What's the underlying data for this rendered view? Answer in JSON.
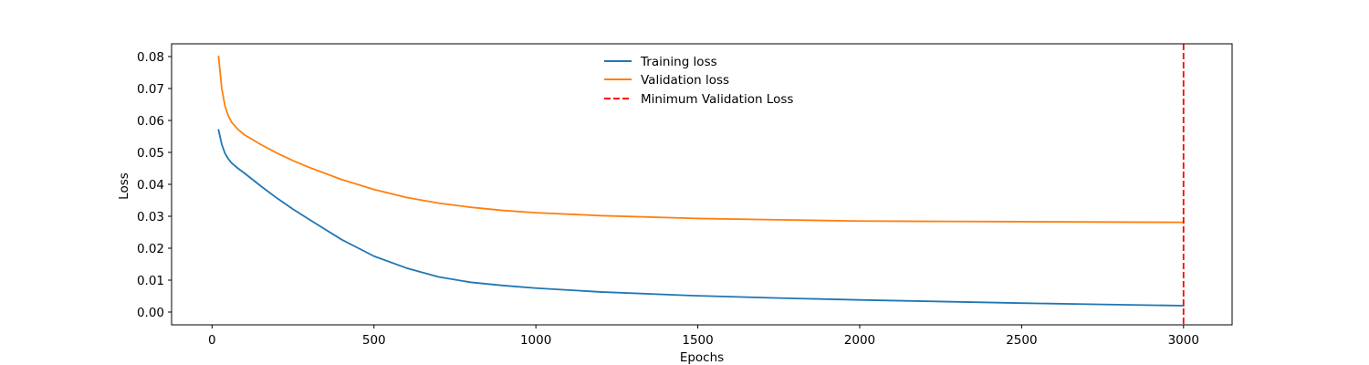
{
  "chart_data": {
    "type": "line",
    "title": "",
    "xlabel": "Epochs",
    "ylabel": "Loss",
    "xlim": [
      -125,
      3150
    ],
    "ylim": [
      -0.004,
      0.084
    ],
    "xticks": [
      0,
      500,
      1000,
      1500,
      2000,
      2500,
      3000
    ],
    "xtick_labels": [
      "0",
      "500",
      "1000",
      "1500",
      "2000",
      "2500",
      "3000"
    ],
    "yticks": [
      0.0,
      0.01,
      0.02,
      0.03,
      0.04,
      0.05,
      0.06,
      0.07,
      0.08
    ],
    "ytick_labels": [
      "0.00",
      "0.01",
      "0.02",
      "0.03",
      "0.04",
      "0.05",
      "0.06",
      "0.07",
      "0.08"
    ],
    "grid": false,
    "legend_position": "top-center",
    "series": [
      {
        "name": "Training loss",
        "color": "#1f77b4",
        "style": "solid",
        "x": [
          20,
          30,
          40,
          50,
          60,
          80,
          100,
          150,
          200,
          250,
          300,
          400,
          500,
          600,
          700,
          800,
          900,
          1000,
          1200,
          1500,
          1750,
          2000,
          2250,
          2500,
          2750,
          3000
        ],
        "y": [
          0.057,
          0.0525,
          0.0497,
          0.048,
          0.0467,
          0.045,
          0.0435,
          0.0395,
          0.0357,
          0.0322,
          0.029,
          0.0227,
          0.0175,
          0.0138,
          0.011,
          0.0093,
          0.0083,
          0.0075,
          0.0063,
          0.0051,
          0.0044,
          0.0038,
          0.0033,
          0.0028,
          0.0024,
          0.002
        ]
      },
      {
        "name": "Validation loss",
        "color": "#ff7f0e",
        "style": "solid",
        "x": [
          20,
          30,
          40,
          50,
          60,
          80,
          100,
          150,
          200,
          250,
          300,
          400,
          500,
          600,
          700,
          800,
          900,
          1000,
          1200,
          1500,
          1750,
          2000,
          2250,
          2500,
          2750,
          3000
        ],
        "y": [
          0.08,
          0.07,
          0.0645,
          0.0615,
          0.0595,
          0.0572,
          0.0555,
          0.0525,
          0.0498,
          0.0474,
          0.0453,
          0.0415,
          0.0384,
          0.0359,
          0.0341,
          0.0328,
          0.0318,
          0.0311,
          0.0302,
          0.0293,
          0.0289,
          0.0285,
          0.0284,
          0.0283,
          0.0282,
          0.0281
        ]
      }
    ],
    "vline": {
      "name": "Minimum Validation Loss",
      "x": 3000,
      "color": "#ff0000",
      "style": "dashed"
    }
  }
}
